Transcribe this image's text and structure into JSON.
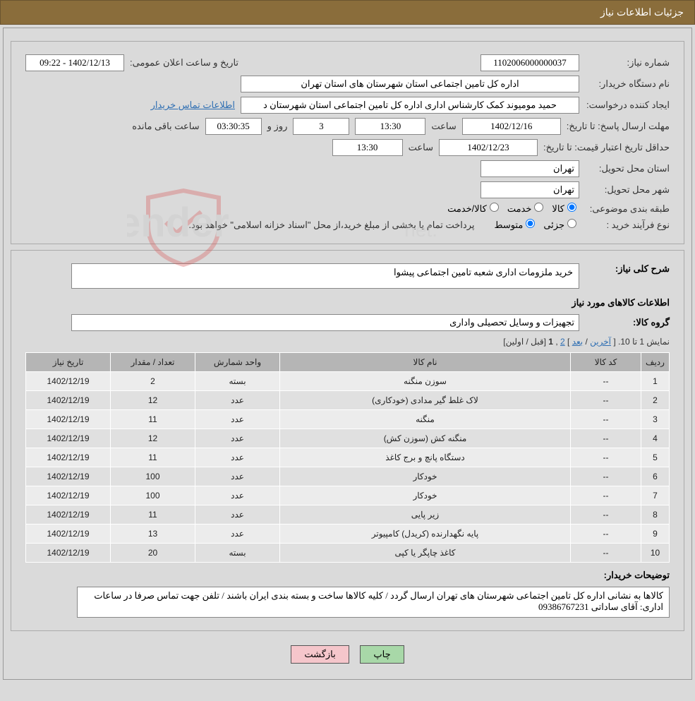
{
  "header": {
    "title": "جزئیات اطلاعات نیاز"
  },
  "top": {
    "need_no_label": "شماره نیاز:",
    "need_no": "1102006000000037",
    "pub_date_label": "تاریخ و ساعت اعلان عمومی:",
    "pub_date": "1402/12/13 - 09:22",
    "buyer_org_label": "نام دستگاه خریدار:",
    "buyer_org": "اداره کل تامین اجتماعی استان شهرستان های استان تهران",
    "creator_label": "ایجاد کننده درخواست:",
    "creator": "حمید مومیوند کمک کارشناس اداری اداره کل تامین اجتماعی استان شهرستان د",
    "buyer_contact_link": "اطلاعات تماس خریدار",
    "deadline_label": "مهلت ارسال پاسخ:",
    "to_date_label": "تا تاریخ:",
    "deadline_date": "1402/12/16",
    "time_label": "ساعت",
    "deadline_time": "13:30",
    "days_label": "روز و",
    "days_left": "3",
    "countdown": "03:30:35",
    "remain_label": "ساعت باقی مانده",
    "min_valid_label": "حداقل تاریخ اعتبار قیمت:",
    "min_valid_date": "1402/12/23",
    "min_valid_time": "13:30",
    "delivery_province_label": "استان محل تحویل:",
    "delivery_province": "تهران",
    "delivery_city_label": "شهر محل تحویل:",
    "delivery_city": "تهران",
    "category_label": "طبقه بندی موضوعی:",
    "category_opts": {
      "goods": "کالا",
      "service": "خدمت",
      "goods_service": "کالا/خدمت"
    },
    "buy_type_label": "نوع فرآیند خرید :",
    "buy_type_opts": {
      "partial": "جزئی",
      "medium": "متوسط"
    },
    "buy_type_note": "پرداخت تمام یا بخشی از مبلغ خرید،از محل \"اسناد خزانه اسلامی\" خواهد بود."
  },
  "general": {
    "desc_label": "شرح کلی نیاز:",
    "desc": "خرید ملزومات اداری شعبه تامین اجتماعی پیشوا",
    "items_info_label": "اطلاعات کالاهای مورد نیاز",
    "group_label": "گروه کالا:",
    "group": "تجهیزات و وسایل تحصیلی واداری",
    "pager_text": "نمایش 1 تا 10.",
    "pager_last": "آخرین",
    "pager_next": "بعد",
    "pager_2": "2",
    "pager_1": "1",
    "pager_prev": "قبل",
    "pager_first": "اولین"
  },
  "table": {
    "columns": [
      "ردیف",
      "کد کالا",
      "نام کالا",
      "واحد شمارش",
      "تعداد / مقدار",
      "تاریخ نیاز"
    ],
    "rows": [
      [
        "1",
        "--",
        "سوزن منگنه",
        "بسته",
        "2",
        "1402/12/19"
      ],
      [
        "2",
        "--",
        "لاک غلط گیر مدادی (خودکاری)",
        "عدد",
        "12",
        "1402/12/19"
      ],
      [
        "3",
        "--",
        "منگنه",
        "عدد",
        "11",
        "1402/12/19"
      ],
      [
        "4",
        "--",
        "منگنه کش (سوزن کش)",
        "عدد",
        "12",
        "1402/12/19"
      ],
      [
        "5",
        "--",
        "دستگاه پانچ و برج کاغذ",
        "عدد",
        "11",
        "1402/12/19"
      ],
      [
        "6",
        "--",
        "خودکار",
        "عدد",
        "100",
        "1402/12/19"
      ],
      [
        "7",
        "--",
        "خودکار",
        "عدد",
        "100",
        "1402/12/19"
      ],
      [
        "8",
        "--",
        "زیر پایی",
        "عدد",
        "11",
        "1402/12/19"
      ],
      [
        "9",
        "--",
        "پایه نگهدارنده (کریدل) کامپیوتر",
        "عدد",
        "13",
        "1402/12/19"
      ],
      [
        "10",
        "--",
        "کاغذ چاپگر یا کپی",
        "بسته",
        "20",
        "1402/12/19"
      ]
    ],
    "col_widths": [
      "40px",
      "100px",
      "auto",
      "120px",
      "120px",
      "120px"
    ]
  },
  "notes": {
    "label": "توضیحات خریدار:",
    "text": "کالاها به نشانی اداره کل تامین اجتماعی شهرستان های تهران ارسال گردد / کلیه کالاها ساخت و بسته بندی ایران باشند / تلفن جهت تماس صرفا در ساعات اداری: آقای ساداتی 09386767231"
  },
  "buttons": {
    "print": "چاپ",
    "back": "بازگشت"
  },
  "watermark": {
    "main": "AriaTender",
    "suffix": ".net"
  }
}
